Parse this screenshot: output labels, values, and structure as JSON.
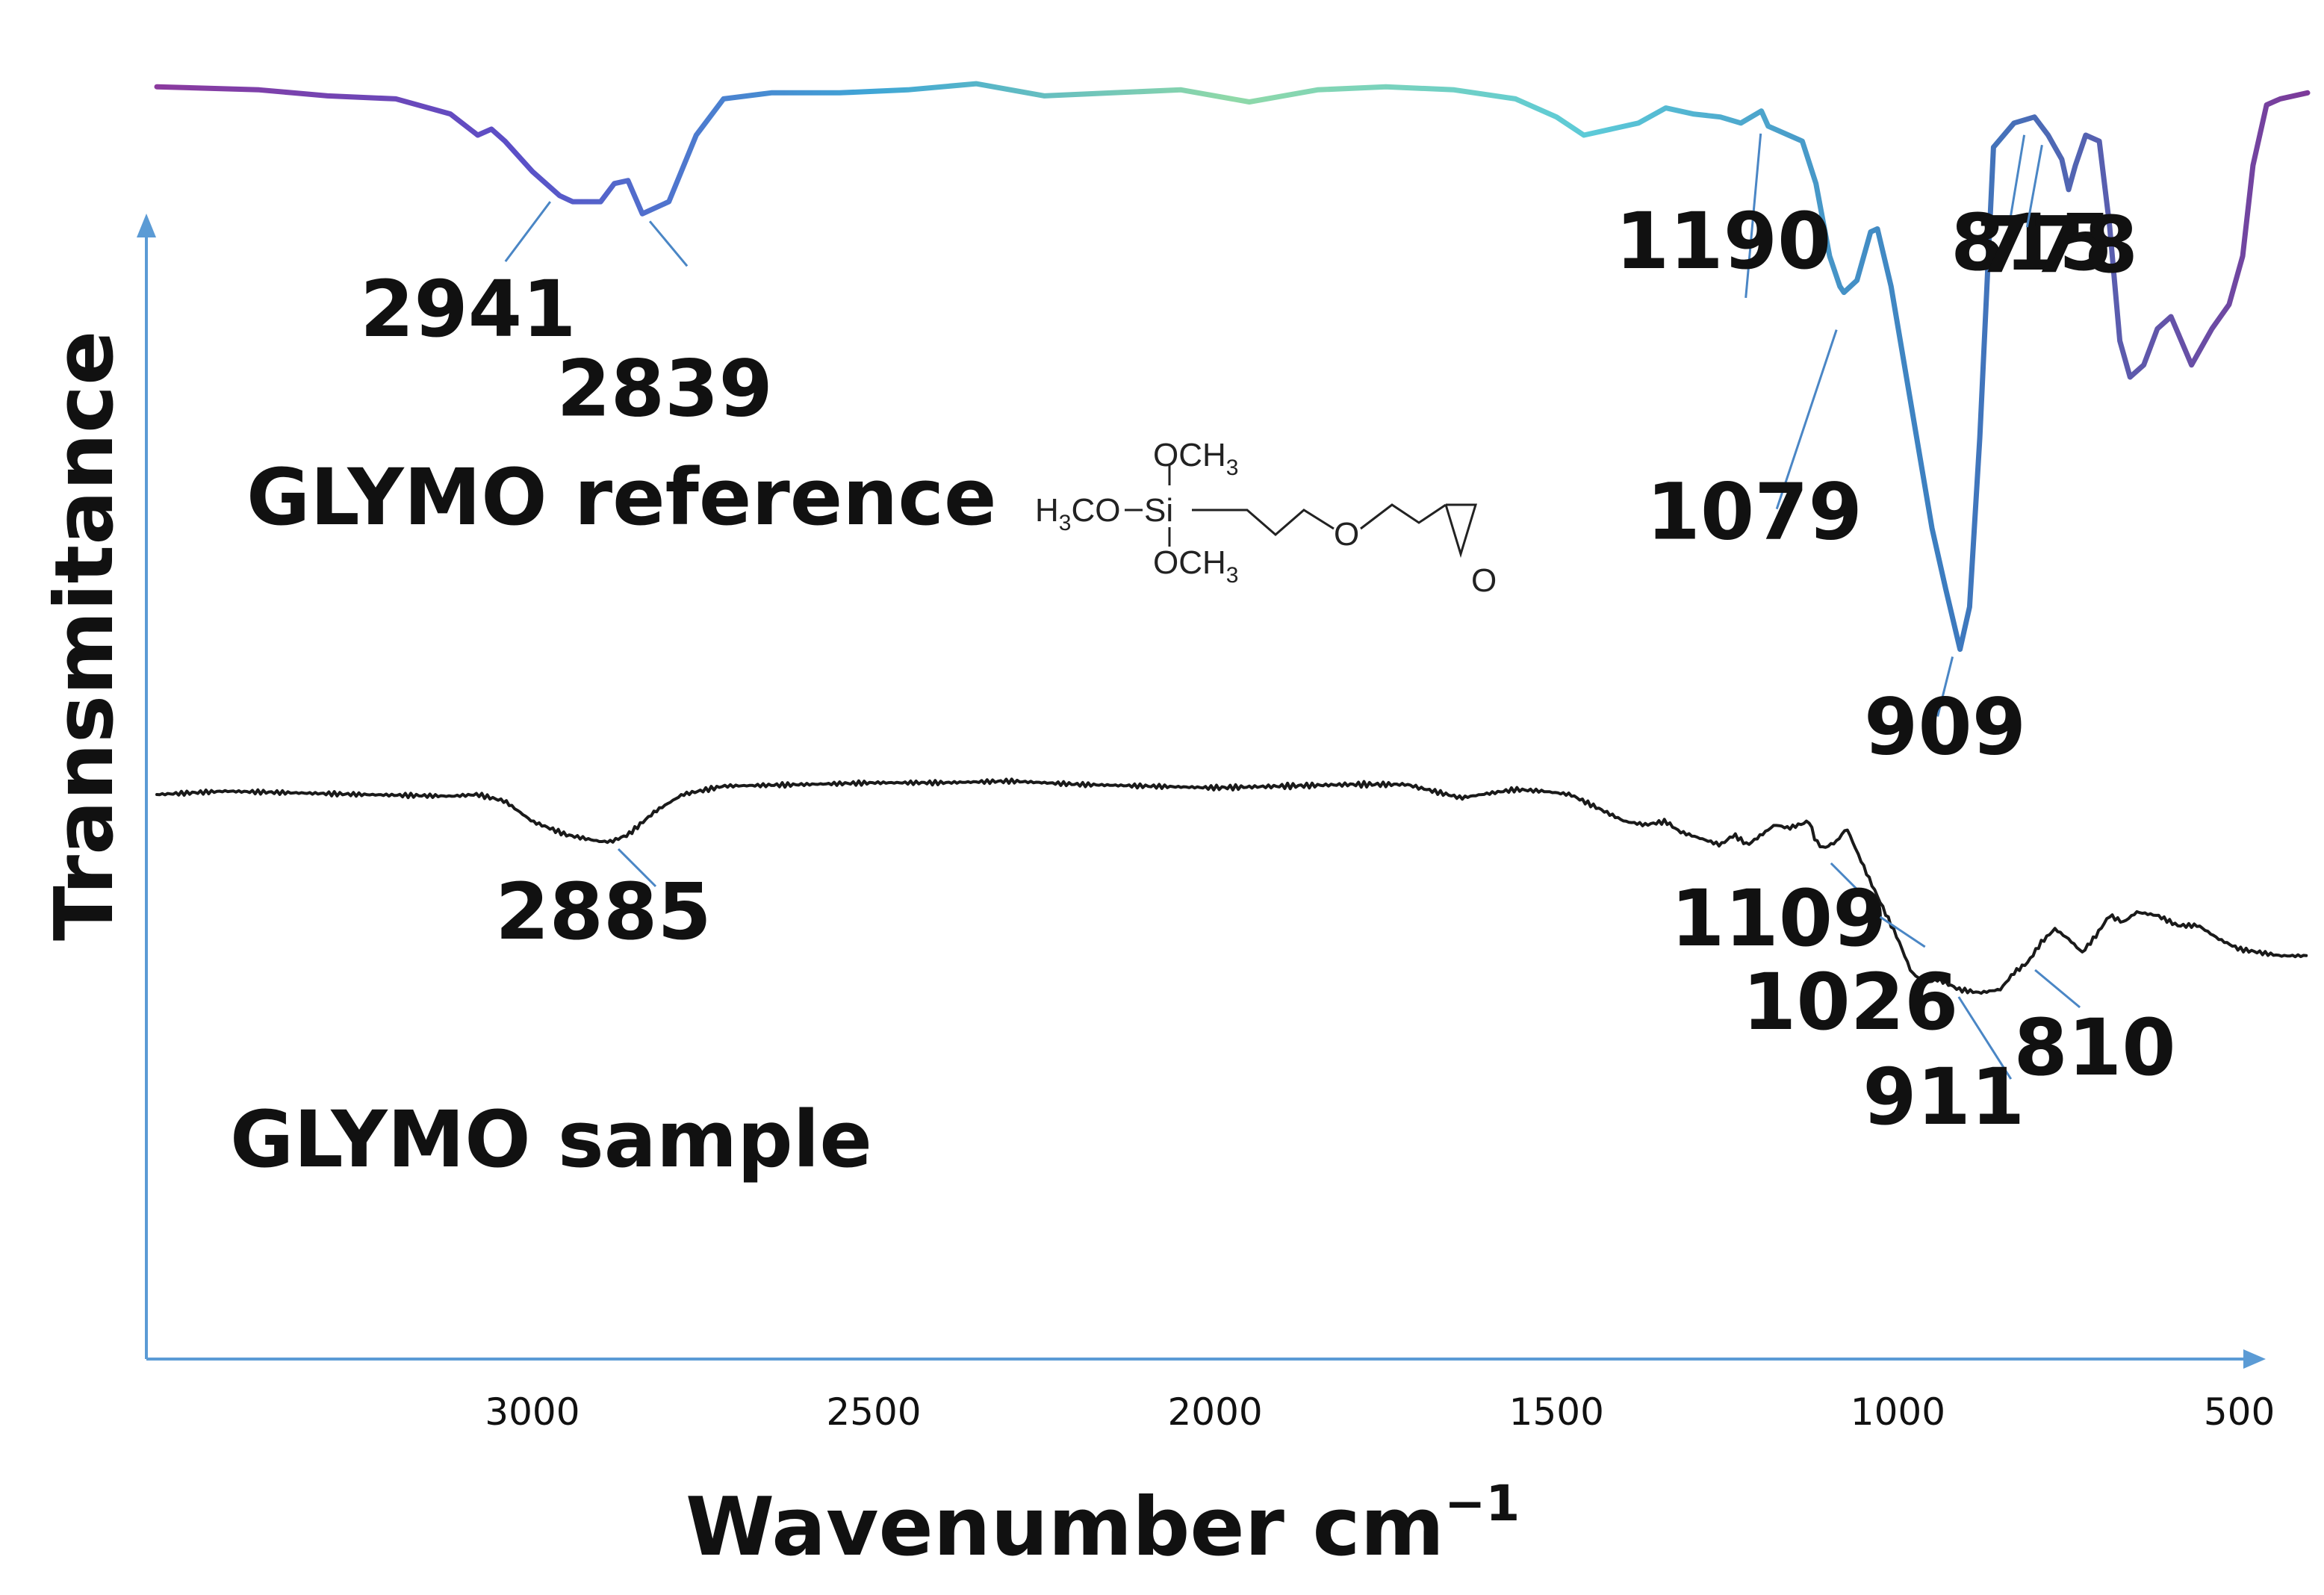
{
  "chart_data": {
    "type": "line",
    "title": "",
    "xlabel": "Wavenumber cm",
    "xlabel_superscript": "−1",
    "ylabel": "Transmitance",
    "x_axis_reversed": true,
    "xlim": [
      3550,
      400
    ],
    "x_ticks": [
      3000,
      2500,
      2000,
      1500,
      1000,
      500
    ],
    "y_ticks_shown": false,
    "colors": {
      "axis": "#5b9bd5",
      "leader": "#4a86c5",
      "sample": "#1a1a1a",
      "ref_gradient": [
        "#8b3a9e",
        "#5b4fc7",
        "#3fa6d6",
        "#8fd9a8",
        "#5ccad8",
        "#3b7bbf",
        "#7d3a9a"
      ]
    },
    "series": [
      {
        "name": "GLYMO reference",
        "style": "gradient",
        "points": [
          [
            3550,
            0.98
          ],
          [
            3400,
            0.975
          ],
          [
            3300,
            0.965
          ],
          [
            3200,
            0.96
          ],
          [
            3120,
            0.935
          ],
          [
            3080,
            0.9
          ],
          [
            3060,
            0.91
          ],
          [
            3040,
            0.89
          ],
          [
            3000,
            0.84
          ],
          [
            2960,
            0.8
          ],
          [
            2941,
            0.79
          ],
          [
            2900,
            0.79
          ],
          [
            2880,
            0.82
          ],
          [
            2860,
            0.825
          ],
          [
            2839,
            0.77
          ],
          [
            2800,
            0.79
          ],
          [
            2760,
            0.9
          ],
          [
            2720,
            0.96
          ],
          [
            2650,
            0.97
          ],
          [
            2550,
            0.97
          ],
          [
            2450,
            0.975
          ],
          [
            2350,
            0.985
          ],
          [
            2250,
            0.965
          ],
          [
            2150,
            0.97
          ],
          [
            2050,
            0.975
          ],
          [
            1950,
            0.955
          ],
          [
            1850,
            0.975
          ],
          [
            1750,
            0.98
          ],
          [
            1650,
            0.975
          ],
          [
            1560,
            0.96
          ],
          [
            1500,
            0.93
          ],
          [
            1460,
            0.9
          ],
          [
            1420,
            0.91
          ],
          [
            1380,
            0.92
          ],
          [
            1340,
            0.945
          ],
          [
            1300,
            0.935
          ],
          [
            1260,
            0.93
          ],
          [
            1230,
            0.92
          ],
          [
            1200,
            0.94
          ],
          [
            1190,
            0.915
          ],
          [
            1160,
            0.9
          ],
          [
            1140,
            0.89
          ],
          [
            1120,
            0.82
          ],
          [
            1100,
            0.7
          ],
          [
            1085,
            0.65
          ],
          [
            1079,
            0.64
          ],
          [
            1060,
            0.66
          ],
          [
            1040,
            0.74
          ],
          [
            1030,
            0.745
          ],
          [
            1010,
            0.65
          ],
          [
            980,
            0.45
          ],
          [
            950,
            0.25
          ],
          [
            930,
            0.15
          ],
          [
            909,
            0.05
          ],
          [
            895,
            0.12
          ],
          [
            880,
            0.4
          ],
          [
            860,
            0.88
          ],
          [
            830,
            0.92
          ],
          [
            800,
            0.93
          ],
          [
            780,
            0.9
          ],
          [
            770,
            0.88
          ],
          [
            760,
            0.86
          ],
          [
            750,
            0.81
          ],
          [
            740,
            0.85
          ],
          [
            725,
            0.9
          ],
          [
            705,
            0.89
          ],
          [
            690,
            0.75
          ],
          [
            675,
            0.56
          ],
          [
            660,
            0.5
          ],
          [
            640,
            0.52
          ],
          [
            620,
            0.58
          ],
          [
            600,
            0.6
          ],
          [
            585,
            0.56
          ],
          [
            570,
            0.52
          ],
          [
            560,
            0.54
          ],
          [
            540,
            0.58
          ],
          [
            515,
            0.62
          ],
          [
            495,
            0.7
          ],
          [
            480,
            0.85
          ],
          [
            460,
            0.95
          ],
          [
            440,
            0.96
          ],
          [
            400,
            0.97
          ]
        ]
      },
      {
        "name": "GLYMO sample",
        "style": "noisy",
        "points": [
          [
            3550,
            0.88
          ],
          [
            3450,
            0.89
          ],
          [
            3350,
            0.885
          ],
          [
            3250,
            0.88
          ],
          [
            3120,
            0.875
          ],
          [
            3080,
            0.88
          ],
          [
            3040,
            0.86
          ],
          [
            3000,
            0.8
          ],
          [
            2950,
            0.76
          ],
          [
            2900,
            0.74
          ],
          [
            2885,
            0.74
          ],
          [
            2860,
            0.76
          ],
          [
            2820,
            0.83
          ],
          [
            2780,
            0.88
          ],
          [
            2720,
            0.905
          ],
          [
            2600,
            0.91
          ],
          [
            2500,
            0.915
          ],
          [
            2400,
            0.915
          ],
          [
            2300,
            0.92
          ],
          [
            2200,
            0.91
          ],
          [
            2100,
            0.905
          ],
          [
            2000,
            0.9
          ],
          [
            1900,
            0.905
          ],
          [
            1800,
            0.91
          ],
          [
            1720,
            0.91
          ],
          [
            1680,
            0.89
          ],
          [
            1640,
            0.87
          ],
          [
            1610,
            0.88
          ],
          [
            1560,
            0.895
          ],
          [
            1520,
            0.89
          ],
          [
            1480,
            0.88
          ],
          [
            1440,
            0.84
          ],
          [
            1400,
            0.8
          ],
          [
            1370,
            0.79
          ],
          [
            1340,
            0.8
          ],
          [
            1320,
            0.77
          ],
          [
            1290,
            0.75
          ],
          [
            1260,
            0.73
          ],
          [
            1240,
            0.76
          ],
          [
            1220,
            0.73
          ],
          [
            1200,
            0.76
          ],
          [
            1180,
            0.79
          ],
          [
            1160,
            0.78
          ],
          [
            1130,
            0.8
          ],
          [
            1120,
            0.74
          ],
          [
            1109,
            0.72
          ],
          [
            1090,
            0.74
          ],
          [
            1075,
            0.78
          ],
          [
            1060,
            0.71
          ],
          [
            1040,
            0.62
          ],
          [
            1026,
            0.56
          ],
          [
            1000,
            0.45
          ],
          [
            980,
            0.35
          ],
          [
            960,
            0.32
          ],
          [
            940,
            0.33
          ],
          [
            911,
            0.3
          ],
          [
            880,
            0.29
          ],
          [
            850,
            0.3
          ],
          [
            830,
            0.35
          ],
          [
            810,
            0.38
          ],
          [
            790,
            0.44
          ],
          [
            770,
            0.48
          ],
          [
            750,
            0.45
          ],
          [
            730,
            0.41
          ],
          [
            710,
            0.46
          ],
          [
            690,
            0.52
          ],
          [
            670,
            0.5
          ],
          [
            650,
            0.53
          ],
          [
            620,
            0.52
          ],
          [
            590,
            0.49
          ],
          [
            560,
            0.49
          ],
          [
            530,
            0.45
          ],
          [
            500,
            0.42
          ],
          [
            470,
            0.41
          ],
          [
            440,
            0.4
          ],
          [
            400,
            0.4
          ]
        ]
      }
    ],
    "annotations": [
      {
        "text": "2941",
        "x": 2941,
        "series": "GLYMO reference"
      },
      {
        "text": "2839",
        "x": 2839,
        "series": "GLYMO reference"
      },
      {
        "text": "1190",
        "x": 1190,
        "series": "GLYMO reference"
      },
      {
        "text": "1079",
        "x": 1079,
        "series": "GLYMO reference"
      },
      {
        "text": "909",
        "x": 909,
        "series": "GLYMO reference"
      },
      {
        "text": "815",
        "x": 815,
        "series": "GLYMO reference"
      },
      {
        "text": "778",
        "x": 778,
        "series": "GLYMO reference"
      },
      {
        "text": "2885",
        "x": 2885,
        "series": "GLYMO sample"
      },
      {
        "text": "1109",
        "x": 1109,
        "series": "GLYMO sample"
      },
      {
        "text": "1026",
        "x": 1026,
        "series": "GLYMO sample"
      },
      {
        "text": "911",
        "x": 911,
        "series": "GLYMO sample"
      },
      {
        "text": "810",
        "x": 810,
        "series": "GLYMO sample"
      }
    ],
    "series_labels": {
      "reference": "GLYMO reference",
      "sample": "GLYMO sample"
    },
    "structure": {
      "name": "GLYMO structure",
      "text_left": "H",
      "text_left_sub": "3",
      "text_left_rest": "CO",
      "atom_si": "Si",
      "group_top": "OCH",
      "group_top_sub": "3",
      "group_bottom": "OCH",
      "group_bottom_sub": "3",
      "atom_o_chain": "O",
      "atom_o_epoxide": "O"
    }
  }
}
